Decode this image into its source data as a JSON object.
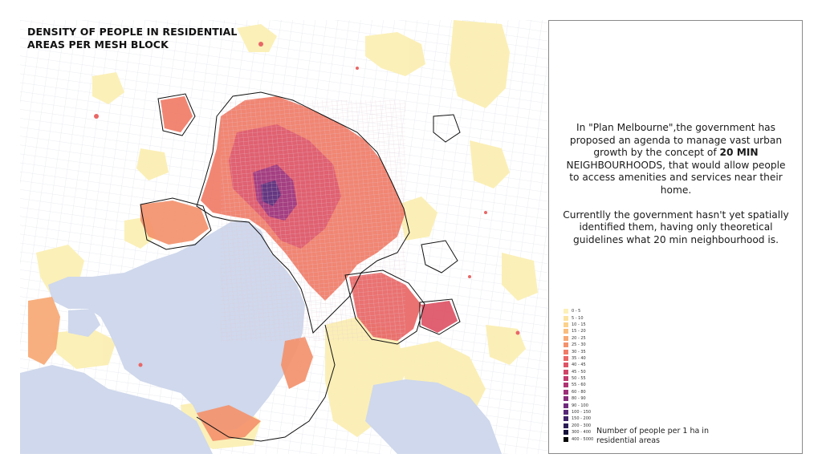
{
  "map": {
    "title": "DENSITY OF PEOPLE IN RESIDENTIAL\nAREAS PER MESH BLOCK",
    "colors": {
      "water": "#cfd8ec",
      "land": "#ffffff",
      "low_density": "#fbefb4",
      "block_lines": "#d6d8e2",
      "boundary": "#111111"
    }
  },
  "legend": {
    "items": [
      {
        "label": "0 - 5",
        "color": "#fcf1b9"
      },
      {
        "label": "5 - 10",
        "color": "#fbe3a0"
      },
      {
        "label": "10 - 15",
        "color": "#fbd28c"
      },
      {
        "label": "15 - 20",
        "color": "#f9bd7e"
      },
      {
        "label": "20 - 25",
        "color": "#f7a874"
      },
      {
        "label": "25 - 30",
        "color": "#f4926d"
      },
      {
        "label": "30 - 35",
        "color": "#f07c68"
      },
      {
        "label": "35 - 40",
        "color": "#e96766"
      },
      {
        "label": "40 - 45",
        "color": "#de5466"
      },
      {
        "label": "45 - 50",
        "color": "#d14469"
      },
      {
        "label": "50 - 55",
        "color": "#c1396e"
      },
      {
        "label": "55 - 60",
        "color": "#b03373"
      },
      {
        "label": "60 - 80",
        "color": "#9d2f78"
      },
      {
        "label": "80 - 90",
        "color": "#872c7c"
      },
      {
        "label": "90 - 100",
        "color": "#6f2a7c"
      },
      {
        "label": "100 - 150",
        "color": "#572777"
      },
      {
        "label": "150 - 200",
        "color": "#3f226a"
      },
      {
        "label": "200 - 300",
        "color": "#2a1c55"
      },
      {
        "label": "300 - 400",
        "color": "#16123a"
      },
      {
        "label": "400 - 5000",
        "color": "#050505"
      }
    ],
    "caption": "Number of people per 1 ha in residential areas"
  },
  "description": {
    "para1_before": "In \"Plan Melbourne\",the government has proposed an agenda to manage vast urban growth by the concept of ",
    "para1_bold": "20 MIN",
    "para1_after": " NEIGHBOURHOODS, that would allow people to access amenities and services near their home.",
    "para2": "Currentlly the government hasn't yet spatially identified them, having only theoretical guidelines what 20 min neighbourhood is."
  }
}
